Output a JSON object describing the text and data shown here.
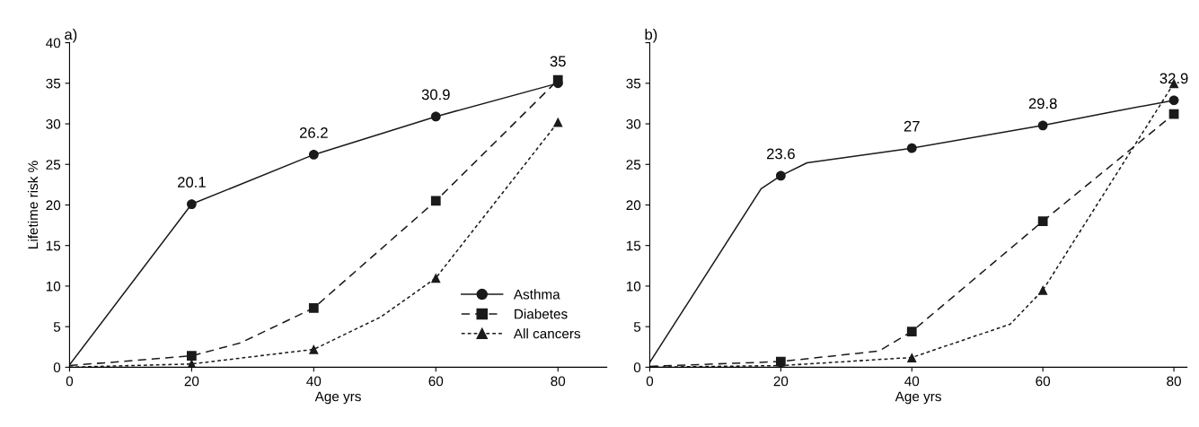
{
  "chart_data": [
    {
      "type": "line",
      "title": "a)",
      "xlabel": "Age yrs",
      "ylabel": "Lifetime risk %",
      "xlim": [
        0,
        88
      ],
      "xticks": [
        0,
        20,
        40,
        60,
        80
      ],
      "ylim": [
        0,
        40
      ],
      "yticks": [
        0,
        5,
        10,
        15,
        20,
        25,
        30,
        35,
        40
      ],
      "grid": false,
      "legend": "bottom right",
      "series": [
        {
          "color": "#1a1a1a",
          "line_style": "solid",
          "x": [
            0,
            20,
            40,
            60,
            80
          ],
          "values": [
            0.3,
            20.1,
            26.2,
            30.9,
            35
          ]
        },
        {
          "color": "#1a1a1a",
          "line_style": "dashed",
          "x": [
            0,
            20,
            28,
            40,
            60,
            80
          ],
          "values": [
            0.2,
            1.4,
            3,
            7.3,
            20.5,
            35.4
          ]
        },
        {
          "color": "#1a1a1a",
          "line_style": "dotted",
          "x": [
            0,
            20,
            40,
            51,
            60,
            80
          ],
          "values": [
            0,
            0.4,
            2.2,
            6.2,
            11,
            30.2
          ]
        },
        {
          "type": "scatter",
          "name": "Asthma",
          "marker": "circle",
          "line_style": "solid",
          "color": "#1a1a1a",
          "x": [
            20,
            40,
            60,
            80
          ],
          "values": [
            20.1,
            26.2,
            30.9,
            35
          ],
          "value_labels": [
            "20.1",
            "26.2",
            "30.9",
            "35"
          ]
        },
        {
          "type": "scatter",
          "name": "Diabetes",
          "marker": "square",
          "line_style": "dashed",
          "color": "#1a1a1a",
          "x": [
            20,
            40,
            60,
            80
          ],
          "values": [
            1.4,
            7.3,
            20.5,
            35.4
          ]
        },
        {
          "type": "scatter",
          "name": "All cancers",
          "marker": "triangle",
          "line_style": "dotted",
          "color": "#1a1a1a",
          "x": [
            20,
            40,
            60,
            80
          ],
          "values": [
            0.4,
            2.2,
            11,
            30.2
          ]
        }
      ]
    },
    {
      "type": "line",
      "title": "b)",
      "xlabel": "Age yrs",
      "xlim": [
        0,
        82
      ],
      "xticks": [
        0,
        20,
        40,
        60,
        80
      ],
      "ylim": [
        0,
        40
      ],
      "yticks": [
        0,
        5,
        10,
        15,
        20,
        25,
        30,
        35,
        {
          "value": 40,
          "label": null
        }
      ],
      "grid": false,
      "series": [
        {
          "color": "#1a1a1a",
          "line_style": "solid",
          "x": [
            0,
            17,
            20,
            24,
            40,
            60,
            70,
            80
          ],
          "values": [
            0.6,
            22,
            23.6,
            25.2,
            27,
            29.8,
            31.4,
            32.9
          ]
        },
        {
          "color": "#1a1a1a",
          "line_style": "dashed",
          "x": [
            0,
            20,
            35,
            40,
            60,
            80
          ],
          "values": [
            0.1,
            0.7,
            2,
            4.4,
            18,
            31.2
          ]
        },
        {
          "color": "#1a1a1a",
          "line_style": "dotted",
          "x": [
            0,
            20,
            40,
            55,
            60,
            80
          ],
          "values": [
            0,
            0.2,
            1.2,
            5.3,
            9.5,
            35
          ]
        },
        {
          "type": "scatter",
          "marker": "circle",
          "color": "#1a1a1a",
          "x": [
            20,
            40,
            60,
            80
          ],
          "values": [
            23.6,
            27,
            29.8,
            32.9
          ],
          "value_labels": [
            "23.6",
            "27",
            "29.8",
            "32.9"
          ]
        },
        {
          "type": "scatter",
          "marker": "square",
          "color": "#1a1a1a",
          "x": [
            20,
            40,
            60,
            80
          ],
          "values": [
            0.7,
            4.4,
            18,
            31.2
          ]
        },
        {
          "type": "scatter",
          "marker": "triangle",
          "color": "#1a1a1a",
          "x": [
            20,
            40,
            60,
            80
          ],
          "values": [
            0.2,
            1.2,
            9.5,
            35
          ]
        }
      ]
    }
  ]
}
